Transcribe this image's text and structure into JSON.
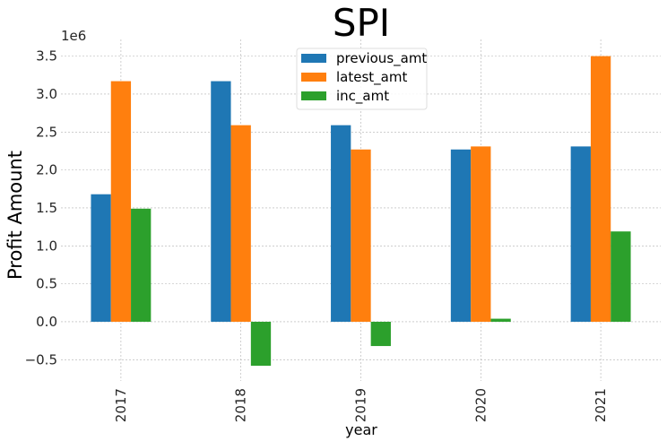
{
  "chart_data": {
    "type": "bar",
    "title": "SPI",
    "xlabel": "year",
    "ylabel": "Profit Amount",
    "y_multiplier_label": "1e6",
    "categories": [
      "2017",
      "2018",
      "2019",
      "2020",
      "2021"
    ],
    "series": [
      {
        "name": "previous_amt",
        "color": "#1f77b4",
        "values": [
          1680000,
          3170000,
          2590000,
          2270000,
          2310000
        ]
      },
      {
        "name": "latest_amt",
        "color": "#ff7f0e",
        "values": [
          3170000,
          2590000,
          2270000,
          2310000,
          3500000
        ]
      },
      {
        "name": "inc_amt",
        "color": "#2ca02c",
        "values": [
          1490000,
          -580000,
          -320000,
          40000,
          1190000
        ]
      }
    ],
    "ylim": [
      -0.78,
      3.72
    ],
    "yticks": [
      -0.5,
      0.0,
      0.5,
      1.0,
      1.5,
      2.0,
      2.5,
      3.0,
      3.5
    ],
    "ytick_labels": [
      "−0.5",
      "0.0",
      "0.5",
      "1.0",
      "1.5",
      "2.0",
      "2.5",
      "3.0",
      "3.5"
    ],
    "y_scale": 1000000,
    "grid": true,
    "legend_position": "top-center"
  }
}
